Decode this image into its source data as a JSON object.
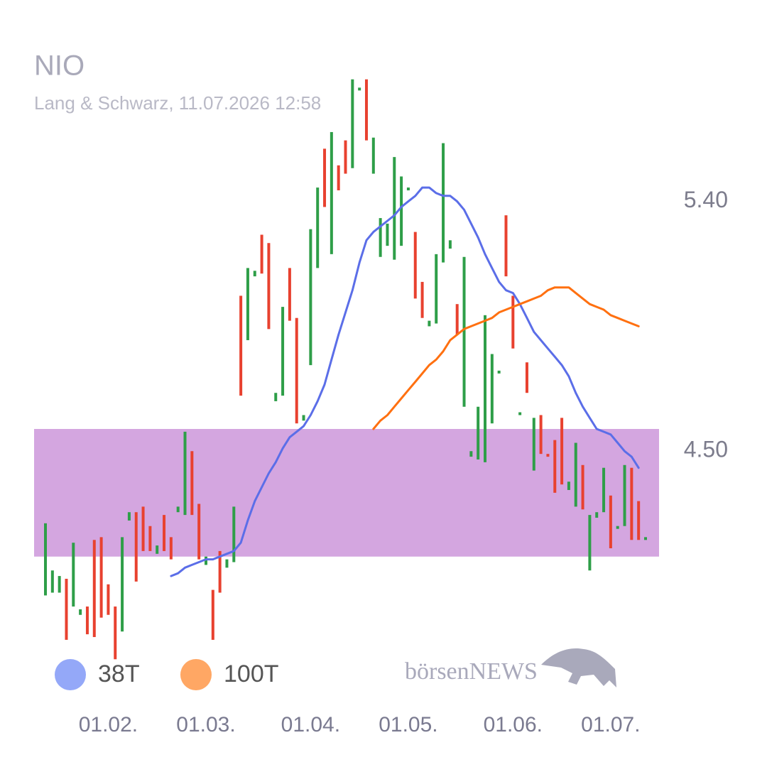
{
  "chart_data": {
    "type": "candlestick",
    "title": "NIO",
    "subtitle": "Lang & Schwarz, 11.07.2026 12:58",
    "watermark": "börsenNEWS",
    "categories": [
      null,
      null,
      null,
      null,
      null,
      null,
      null,
      null,
      null,
      "01.02.",
      null,
      null,
      null,
      null,
      null,
      null,
      null,
      null,
      null,
      null,
      null,
      null,
      null,
      "01.03.",
      null,
      null,
      null,
      null,
      null,
      null,
      null,
      null,
      null,
      null,
      null,
      null,
      null,
      null,
      "01.04.",
      null,
      null,
      null,
      null,
      null,
      null,
      null,
      null,
      null,
      null,
      null,
      null,
      null,
      "01.05.",
      null,
      null,
      null,
      null,
      null,
      null,
      null,
      null,
      null,
      null,
      null,
      null,
      null,
      null,
      "01.06.",
      null,
      null,
      null,
      null,
      null,
      null,
      null,
      null,
      null,
      null,
      null,
      null,
      null,
      "01.07.",
      null,
      null,
      null,
      null,
      null
    ],
    "open": [
      3.98,
      3.99,
      3.99,
      4.04,
      3.94,
      3.91,
      3.94,
      4.18,
      4.19,
      4.02,
      3.94,
      3.85,
      4.25,
      4.28,
      4.3,
      4.23,
      4.13,
      4.27,
      4.19,
      4.28,
      4.27,
      4.5,
      4.31,
      4.09,
      4.0,
      4.14,
      4.08,
      4.1,
      5.06,
      4.9,
      5.13,
      5.28,
      5.25,
      4.68,
      4.7,
      5.16,
      4.98,
      4.61,
      4.81,
      5.16,
      5.59,
      5.21,
      5.53,
      5.62,
      5.52,
      5.8,
      5.84,
      5.5,
      5.2,
      5.24,
      5.19,
      5.24,
      5.44,
      5.29,
      5.11,
      4.95,
      4.96,
      5.18,
      5.23,
      5.03,
      4.66,
      4.48,
      4.47,
      4.46,
      4.6,
      4.78,
      5.35,
      5.06,
      4.63,
      4.82,
      4.43,
      4.63,
      4.49,
      4.54,
      4.62,
      4.36,
      4.3,
      4.45,
      4.07,
      4.26,
      4.28,
      4.34,
      4.22,
      4.23,
      4.44,
      4.32,
      4.18
    ],
    "close": [
      4.24,
      4.07,
      4.05,
      3.82,
      4.17,
      3.93,
      3.84,
      3.83,
      3.9,
      3.91,
      3.75,
      4.19,
      4.28,
      4.03,
      4.14,
      4.14,
      4.16,
      4.14,
      4.11,
      4.3,
      4.57,
      4.27,
      4.11,
      4.12,
      3.82,
      3.99,
      4.11,
      4.3,
      4.7,
      5.16,
      5.15,
      5.14,
      4.94,
      4.71,
      5.02,
      4.97,
      4.6,
      4.63,
      5.3,
      5.45,
      5.38,
      5.65,
      5.44,
      5.5,
      5.84,
      5.81,
      5.62,
      5.63,
      5.34,
      5.32,
      5.56,
      5.49,
      5.45,
      5.05,
      4.98,
      4.97,
      5.21,
      5.61,
      5.26,
      4.92,
      5.2,
      4.5,
      4.66,
      4.99,
      4.85,
      4.79,
      5.13,
      4.87,
      4.64,
      4.71,
      4.62,
      4.49,
      4.48,
      4.35,
      4.38,
      4.39,
      4.53,
      4.29,
      4.27,
      4.28,
      4.44,
      4.15,
      4.23,
      4.45,
      4.18,
      4.18,
      4.19
    ],
    "up_color": "#2e9e48",
    "down_color": "#e8412f",
    "series": [
      {
        "name": "38T",
        "color": "#5b6ee8",
        "legend_color": "#94a8f8",
        "values": [
          null,
          null,
          null,
          null,
          null,
          null,
          null,
          null,
          null,
          null,
          null,
          null,
          null,
          null,
          null,
          null,
          null,
          null,
          4.05,
          4.06,
          4.08,
          4.09,
          4.1,
          4.11,
          4.11,
          4.12,
          4.13,
          4.14,
          4.17,
          4.25,
          4.32,
          4.37,
          4.42,
          4.46,
          4.51,
          4.55,
          4.57,
          4.59,
          4.63,
          4.68,
          4.74,
          4.83,
          4.92,
          5.0,
          5.08,
          5.18,
          5.26,
          5.29,
          5.31,
          5.33,
          5.35,
          5.38,
          5.4,
          5.42,
          5.45,
          5.45,
          5.43,
          5.42,
          5.42,
          5.4,
          5.37,
          5.32,
          5.27,
          5.21,
          5.16,
          5.11,
          5.08,
          5.07,
          5.03,
          4.98,
          4.93,
          4.9,
          4.87,
          4.84,
          4.81,
          4.77,
          4.71,
          4.66,
          4.62,
          4.58,
          4.57,
          4.56,
          4.53,
          4.5,
          4.48,
          4.44,
          null
        ]
      },
      {
        "name": "100T",
        "color": "#ff7010",
        "legend_color": "#ffa764",
        "values": [
          null,
          null,
          null,
          null,
          null,
          null,
          null,
          null,
          null,
          null,
          null,
          null,
          null,
          null,
          null,
          null,
          null,
          null,
          null,
          null,
          null,
          null,
          null,
          null,
          null,
          null,
          null,
          null,
          null,
          null,
          null,
          null,
          null,
          null,
          null,
          null,
          null,
          null,
          null,
          null,
          null,
          null,
          null,
          null,
          null,
          null,
          null,
          4.58,
          4.61,
          4.63,
          4.66,
          4.69,
          4.72,
          4.75,
          4.78,
          4.81,
          4.83,
          4.86,
          4.9,
          4.92,
          4.94,
          4.95,
          4.96,
          4.97,
          4.98,
          5.0,
          5.01,
          5.02,
          5.03,
          5.04,
          5.05,
          5.06,
          5.08,
          5.09,
          5.09,
          5.09,
          5.07,
          5.05,
          5.03,
          5.02,
          5.01,
          4.99,
          4.98,
          4.97,
          4.96,
          4.95,
          null
        ]
      }
    ],
    "zones": [
      {
        "from": 4.12,
        "to": 4.58,
        "color": "#d4a6e0"
      }
    ],
    "ylim": [
      3.72,
      5.87
    ],
    "yticks": [
      {
        "value": 4.5,
        "label": "4.50"
      },
      {
        "value": 5.4,
        "label": "5.40"
      }
    ],
    "grid": false
  }
}
